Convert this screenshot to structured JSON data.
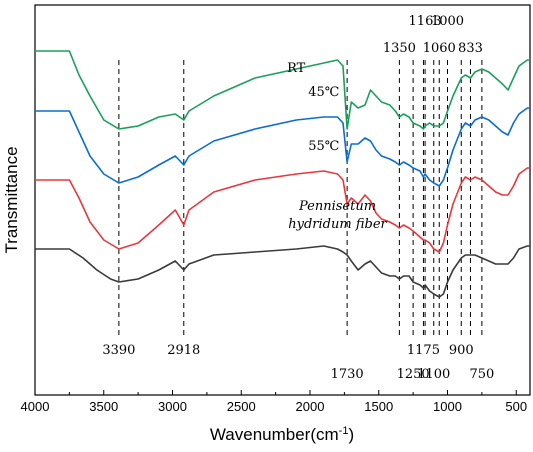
{
  "chart_data": {
    "type": "line",
    "title": "",
    "xlabel": "Wavenumber(cm⁻¹)",
    "ylabel": "Transmittance",
    "xlim": [
      4000,
      400
    ],
    "x_reversed": true,
    "x_ticks": [
      4000,
      3500,
      3000,
      2500,
      2000,
      1500,
      1000,
      500
    ],
    "y_ticks": "none",
    "grid": false,
    "legend": "none",
    "series": [
      {
        "label_lines": [
          "55℃"
        ],
        "color": "#1aa05a",
        "points": [
          [
            4000,
            93
          ],
          [
            3750,
            93
          ],
          [
            3680,
            85
          ],
          [
            3600,
            78
          ],
          [
            3500,
            70
          ],
          [
            3390,
            67
          ],
          [
            3250,
            68
          ],
          [
            3100,
            71
          ],
          [
            2980,
            72
          ],
          [
            2918,
            70
          ],
          [
            2880,
            73
          ],
          [
            2700,
            78
          ],
          [
            2400,
            84
          ],
          [
            2100,
            87
          ],
          [
            1900,
            89
          ],
          [
            1800,
            90
          ],
          [
            1760,
            88
          ],
          [
            1730,
            67
          ],
          [
            1700,
            76
          ],
          [
            1650,
            74
          ],
          [
            1600,
            75
          ],
          [
            1560,
            80
          ],
          [
            1520,
            78
          ],
          [
            1480,
            76
          ],
          [
            1420,
            75
          ],
          [
            1380,
            73
          ],
          [
            1350,
            71
          ],
          [
            1320,
            72
          ],
          [
            1280,
            71
          ],
          [
            1250,
            69
          ],
          [
            1200,
            68
          ],
          [
            1175,
            67
          ],
          [
            1163,
            68
          ],
          [
            1130,
            69
          ],
          [
            1100,
            68
          ],
          [
            1060,
            68
          ],
          [
            1030,
            69
          ],
          [
            1000,
            73
          ],
          [
            960,
            78
          ],
          [
            900,
            84
          ],
          [
            870,
            85
          ],
          [
            833,
            84
          ],
          [
            800,
            86
          ],
          [
            750,
            87
          ],
          [
            700,
            86
          ],
          [
            650,
            84
          ],
          [
            600,
            82
          ],
          [
            560,
            80
          ],
          [
            520,
            84
          ],
          [
            480,
            88
          ],
          [
            420,
            90
          ],
          [
            400,
            90
          ]
        ]
      },
      {
        "label_lines": [
          "45℃"
        ],
        "color": "#0a6ed0",
        "points": [
          [
            4000,
            73
          ],
          [
            3750,
            73
          ],
          [
            3680,
            66
          ],
          [
            3600,
            58
          ],
          [
            3500,
            52
          ],
          [
            3390,
            49
          ],
          [
            3250,
            51
          ],
          [
            3100,
            55
          ],
          [
            2980,
            58
          ],
          [
            2918,
            55
          ],
          [
            2880,
            58
          ],
          [
            2700,
            63
          ],
          [
            2400,
            67
          ],
          [
            2100,
            70
          ],
          [
            1900,
            71
          ],
          [
            1800,
            71
          ],
          [
            1760,
            69
          ],
          [
            1730,
            56
          ],
          [
            1700,
            62
          ],
          [
            1650,
            62
          ],
          [
            1600,
            64
          ],
          [
            1560,
            63
          ],
          [
            1520,
            60
          ],
          [
            1480,
            58
          ],
          [
            1420,
            57
          ],
          [
            1380,
            56
          ],
          [
            1350,
            55
          ],
          [
            1320,
            56
          ],
          [
            1280,
            55
          ],
          [
            1250,
            54
          ],
          [
            1200,
            53
          ],
          [
            1175,
            51
          ],
          [
            1163,
            52
          ],
          [
            1130,
            50
          ],
          [
            1100,
            49
          ],
          [
            1060,
            48
          ],
          [
            1030,
            50
          ],
          [
            1000,
            54
          ],
          [
            960,
            60
          ],
          [
            900,
            67
          ],
          [
            870,
            69
          ],
          [
            833,
            68
          ],
          [
            800,
            70
          ],
          [
            750,
            71
          ],
          [
            700,
            70
          ],
          [
            650,
            68
          ],
          [
            600,
            66
          ],
          [
            560,
            65
          ],
          [
            520,
            69
          ],
          [
            480,
            72
          ],
          [
            420,
            74
          ],
          [
            400,
            74
          ]
        ]
      },
      {
        "label_lines": [
          "RT"
        ],
        "color": "#e8383c",
        "points": [
          [
            4000,
            50
          ],
          [
            3750,
            50
          ],
          [
            3680,
            44
          ],
          [
            3600,
            36
          ],
          [
            3500,
            30
          ],
          [
            3390,
            27
          ],
          [
            3250,
            29
          ],
          [
            3100,
            35
          ],
          [
            2980,
            40
          ],
          [
            2918,
            35
          ],
          [
            2880,
            40
          ],
          [
            2700,
            46
          ],
          [
            2400,
            50
          ],
          [
            2100,
            52
          ],
          [
            1900,
            53
          ],
          [
            1800,
            52
          ],
          [
            1760,
            50
          ],
          [
            1730,
            42
          ],
          [
            1700,
            44
          ],
          [
            1650,
            42
          ],
          [
            1600,
            45
          ],
          [
            1560,
            43
          ],
          [
            1520,
            39
          ],
          [
            1480,
            37
          ],
          [
            1420,
            36
          ],
          [
            1380,
            35
          ],
          [
            1350,
            34
          ],
          [
            1320,
            35
          ],
          [
            1280,
            34
          ],
          [
            1250,
            33
          ],
          [
            1200,
            31
          ],
          [
            1175,
            30
          ],
          [
            1163,
            30
          ],
          [
            1130,
            29
          ],
          [
            1100,
            27
          ],
          [
            1060,
            26
          ],
          [
            1030,
            29
          ],
          [
            1000,
            35
          ],
          [
            960,
            42
          ],
          [
            900,
            49
          ],
          [
            870,
            51
          ],
          [
            833,
            50
          ],
          [
            800,
            51
          ],
          [
            750,
            50
          ],
          [
            700,
            48
          ],
          [
            650,
            46
          ],
          [
            600,
            45
          ],
          [
            560,
            45
          ],
          [
            520,
            48
          ],
          [
            480,
            52
          ],
          [
            420,
            54
          ],
          [
            400,
            54
          ]
        ]
      },
      {
        "label_lines": [
          "Pennisetum",
          "hydridum fiber"
        ],
        "color": "#3a3a3a",
        "points": [
          [
            4000,
            27
          ],
          [
            3750,
            27
          ],
          [
            3650,
            24
          ],
          [
            3550,
            20
          ],
          [
            3450,
            17
          ],
          [
            3390,
            16
          ],
          [
            3250,
            17
          ],
          [
            3100,
            20
          ],
          [
            2980,
            23
          ],
          [
            2918,
            20
          ],
          [
            2880,
            22
          ],
          [
            2700,
            25
          ],
          [
            2400,
            26
          ],
          [
            2100,
            27
          ],
          [
            1900,
            28
          ],
          [
            1800,
            27
          ],
          [
            1760,
            26
          ],
          [
            1730,
            25
          ],
          [
            1700,
            23
          ],
          [
            1650,
            20
          ],
          [
            1600,
            22
          ],
          [
            1560,
            23
          ],
          [
            1520,
            21
          ],
          [
            1480,
            19
          ],
          [
            1420,
            18
          ],
          [
            1380,
            18
          ],
          [
            1350,
            17
          ],
          [
            1320,
            18
          ],
          [
            1280,
            18
          ],
          [
            1250,
            16
          ],
          [
            1200,
            15
          ],
          [
            1175,
            14
          ],
          [
            1163,
            15
          ],
          [
            1130,
            13
          ],
          [
            1100,
            12
          ],
          [
            1060,
            11
          ],
          [
            1030,
            12
          ],
          [
            1000,
            16
          ],
          [
            960,
            20
          ],
          [
            900,
            24
          ],
          [
            870,
            25
          ],
          [
            833,
            25
          ],
          [
            800,
            25
          ],
          [
            750,
            24
          ],
          [
            700,
            23
          ],
          [
            650,
            22
          ],
          [
            600,
            22
          ],
          [
            560,
            22
          ],
          [
            520,
            24
          ],
          [
            480,
            27
          ],
          [
            420,
            28
          ],
          [
            400,
            28
          ]
        ]
      }
    ],
    "peak_markers": [
      {
        "value": 3390,
        "label": "3390",
        "label_pos": "bottom"
      },
      {
        "value": 2918,
        "label": "2918",
        "label_pos": "bottom"
      },
      {
        "value": 1730,
        "label": "1730",
        "label_pos": "bottom-low"
      },
      {
        "value": 1350,
        "label": "1350",
        "label_pos": "top"
      },
      {
        "value": 1250,
        "label": "1250",
        "label_pos": "bottom-low"
      },
      {
        "value": 1175,
        "label": "1175",
        "label_pos": "bottom"
      },
      {
        "value": 1163,
        "label": "1163",
        "label_pos": "top-high"
      },
      {
        "value": 1100,
        "label": "1100",
        "label_pos": "bottom-low"
      },
      {
        "value": 1060,
        "label": "1060",
        "label_pos": "top"
      },
      {
        "value": 1000,
        "label": "1000",
        "label_pos": "top-high"
      },
      {
        "value": 900,
        "label": "900",
        "label_pos": "bottom"
      },
      {
        "value": 833,
        "label": "833",
        "label_pos": "top"
      },
      {
        "value": 750,
        "label": "750",
        "label_pos": "bottom-low"
      }
    ]
  }
}
